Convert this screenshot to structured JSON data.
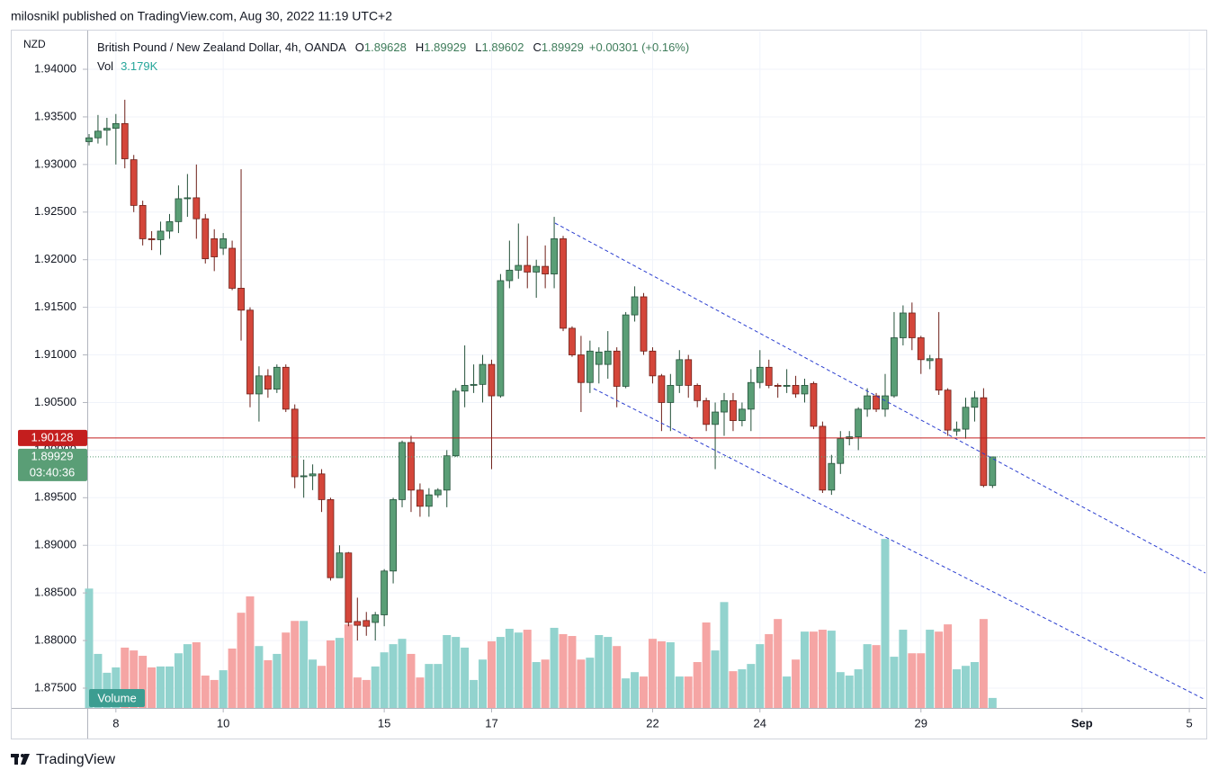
{
  "header": {
    "byline": "milosnikl published on TradingView.com, Aug 30, 2022 11:19 UTC+2",
    "brand": "TradingView"
  },
  "chart_data": {
    "type": "candlestick",
    "currency": "NZD",
    "legend": {
      "symbol": "British Pound / New Zealand Dollar, 4h, OANDA",
      "items": [
        {
          "label": "O",
          "value": "1.89628"
        },
        {
          "label": "H",
          "value": "1.89929"
        },
        {
          "label": "L",
          "value": "1.89602"
        },
        {
          "label": "C",
          "value": "1.89929"
        }
      ],
      "change": "+0.00301 (+0.16%)",
      "volume_label": "Vol",
      "volume_value": "3.179K"
    },
    "volume_badge": "Volume",
    "up_color": "#5a9e76",
    "down_color": "#d4463a",
    "volume_up_color": "#92d3ce",
    "volume_down_color": "#f5a5a4",
    "grid": true,
    "open": [
      1.9324,
      1.9328,
      1.9336,
      1.9338,
      1.9343,
      1.9305,
      1.9257,
      1.9222,
      1.9221,
      1.923,
      1.924,
      1.9264,
      1.9265,
      1.9243,
      1.9222,
      1.9212,
      1.9212,
      1.917,
      1.9147,
      1.9059,
      1.9078,
      1.9064,
      1.9087,
      1.9043,
      1.8972,
      1.8973,
      1.8975,
      1.8948,
      1.8866,
      1.8892,
      1.882,
      1.8821,
      1.8819,
      1.8827,
      1.8873,
      1.8948,
      1.9008,
      1.8958,
      1.8941,
      1.8953,
      1.8958,
      1.8994,
      1.9062,
      1.9068,
      1.9069,
      1.909,
      1.9057,
      1.9178,
      1.9189,
      1.9194,
      1.9187,
      1.9193,
      1.9185,
      1.9222,
      1.9128,
      1.91,
      1.9071,
      1.909,
      1.909,
      1.9104,
      1.9067,
      1.9142,
      1.9161,
      1.9104,
      1.9078,
      1.905,
      1.9068,
      1.9095,
      1.9068,
      1.9052,
      1.9027,
      1.904,
      1.9052,
      1.9031,
      1.9043,
      1.9071,
      1.9087,
      1.9068,
      1.9067,
      1.9068,
      1.9059,
      1.907,
      1.9025,
      1.8958,
      1.8986,
      1.9012,
      1.9014,
      1.9043,
      1.9057,
      1.9043,
      1.9057,
      1.9118,
      1.9144,
      1.9118,
      1.9094,
      1.9096,
      1.9063,
      1.902,
      1.9022,
      1.9045,
      1.9055,
      1.89628
    ],
    "high": [
      1.9332,
      1.9352,
      1.9349,
      1.9353,
      1.9368,
      1.931,
      1.9262,
      1.923,
      1.924,
      1.9248,
      1.9278,
      1.929,
      1.93,
      1.9248,
      1.9232,
      1.9228,
      1.922,
      1.9295,
      1.915,
      1.9088,
      1.9085,
      1.909,
      1.909,
      1.9048,
      1.899,
      1.8985,
      1.898,
      1.895,
      1.89,
      1.8893,
      1.8845,
      1.883,
      1.883,
      1.8875,
      1.895,
      1.901,
      1.9015,
      1.8965,
      1.896,
      1.896,
      1.9,
      1.9065,
      1.911,
      1.909,
      1.91,
      1.9095,
      1.9185,
      1.922,
      1.9238,
      1.9225,
      1.92,
      1.9215,
      1.9245,
      1.9225,
      1.913,
      1.912,
      1.9115,
      1.9108,
      1.9125,
      1.9108,
      1.9145,
      1.9172,
      1.9165,
      1.9108,
      1.908,
      1.908,
      1.9105,
      1.91,
      1.907,
      1.9055,
      1.905,
      1.906,
      1.906,
      1.905,
      1.9085,
      1.9105,
      1.9095,
      1.907,
      1.9085,
      1.9078,
      1.9075,
      1.9072,
      1.903,
      1.8995,
      1.902,
      1.902,
      1.9045,
      1.9065,
      1.906,
      1.908,
      1.9145,
      1.9152,
      1.9155,
      1.912,
      1.91,
      1.9145,
      1.9065,
      1.903,
      1.9055,
      1.9062,
      1.9065,
      1.89929
    ],
    "low": [
      1.932,
      1.9322,
      1.932,
      1.93,
      1.9296,
      1.925,
      1.9215,
      1.921,
      1.9205,
      1.9222,
      1.9228,
      1.9245,
      1.9222,
      1.9196,
      1.9188,
      1.9205,
      1.9168,
      1.9115,
      1.9045,
      1.903,
      1.9055,
      1.906,
      1.904,
      1.896,
      1.895,
      1.8958,
      1.8935,
      1.8863,
      1.8866,
      1.8815,
      1.88,
      1.8805,
      1.88,
      1.8815,
      1.886,
      1.894,
      1.8935,
      1.893,
      1.893,
      1.895,
      1.894,
      1.8993,
      1.9045,
      1.906,
      1.905,
      1.898,
      1.9055,
      1.917,
      1.918,
      1.917,
      1.916,
      1.917,
      1.917,
      1.9125,
      1.9098,
      1.904,
      1.906,
      1.907,
      1.9075,
      1.9045,
      1.9065,
      1.9135,
      1.91,
      1.907,
      1.902,
      1.902,
      1.906,
      1.9055,
      1.9045,
      1.902,
      1.898,
      1.9015,
      1.902,
      1.9025,
      1.902,
      1.9065,
      1.9065,
      1.9055,
      1.906,
      1.9055,
      1.905,
      1.9022,
      1.8955,
      1.8953,
      1.8975,
      1.9005,
      1.9,
      1.9035,
      1.904,
      1.9035,
      1.9055,
      1.911,
      1.9105,
      1.908,
      1.9085,
      1.9058,
      1.9015,
      1.9015,
      1.9012,
      1.903,
      1.8961,
      1.89602
    ],
    "close": [
      1.9328,
      1.9335,
      1.9338,
      1.9343,
      1.9306,
      1.9257,
      1.9222,
      1.9221,
      1.923,
      1.924,
      1.9264,
      1.9265,
      1.9243,
      1.9201,
      1.9203,
      1.9222,
      1.917,
      1.9147,
      1.9059,
      1.9078,
      1.9064,
      1.9087,
      1.9043,
      1.8972,
      1.8973,
      1.8975,
      1.8948,
      1.8866,
      1.8892,
      1.8819,
      1.8816,
      1.8815,
      1.8827,
      1.8873,
      1.8948,
      1.9008,
      1.8958,
      1.8941,
      1.8953,
      1.8958,
      1.8994,
      1.9062,
      1.9068,
      1.9069,
      1.909,
      1.9057,
      1.9178,
      1.9189,
      1.9194,
      1.9187,
      1.9193,
      1.9185,
      1.9222,
      1.9128,
      1.91,
      1.9071,
      1.9104,
      1.9103,
      1.9104,
      1.9067,
      1.9142,
      1.9161,
      1.9104,
      1.9078,
      1.905,
      1.9068,
      1.9095,
      1.9068,
      1.9052,
      1.9027,
      1.904,
      1.9052,
      1.9031,
      1.9043,
      1.9071,
      1.9087,
      1.9068,
      1.9067,
      1.9068,
      1.9059,
      1.9068,
      1.9025,
      1.8958,
      1.8986,
      1.9012,
      1.9014,
      1.9043,
      1.9057,
      1.9043,
      1.9057,
      1.9118,
      1.9144,
      1.9118,
      1.9095,
      1.9096,
      1.9063,
      1.9021,
      1.9022,
      1.9045,
      1.9055,
      1.89628,
      1.89929
    ],
    "volume": {
      "values": [
        38.0,
        17.2,
        11.2,
        12.9,
        19.2,
        18.3,
        16.6,
        12.9,
        13.2,
        13.2,
        17.4,
        20.3,
        20.9,
        10.3,
        8.9,
        12.0,
        18.9,
        30.3,
        35.5,
        19.7,
        15.2,
        17.2,
        24.0,
        27.7,
        27.7,
        15.4,
        13.4,
        21.5,
        22.3,
        26.6,
        9.7,
        8.9,
        13.2,
        17.7,
        20.3,
        22.0,
        17.2,
        9.7,
        14.0,
        14.0,
        23.2,
        22.6,
        19.2,
        8.9,
        15.4,
        21.2,
        22.6,
        25.2,
        24.0,
        24.9,
        14.6,
        15.4,
        25.5,
        23.5,
        22.9,
        15.4,
        16.0,
        23.2,
        22.6,
        19.7,
        9.4,
        11.4,
        10.0,
        22.0,
        21.2,
        20.9,
        10.0,
        10.0,
        14.6,
        27.2,
        18.3,
        33.7,
        11.7,
        12.3,
        14.0,
        20.3,
        23.5,
        28.3,
        10.0,
        15.4,
        24.3,
        24.3,
        24.9,
        24.6,
        11.4,
        10.3,
        12.3,
        20.3,
        20.0,
        53.8,
        16.3,
        24.9,
        17.4,
        17.4,
        24.9,
        24.3,
        26.6,
        12.3,
        13.4,
        14.6,
        28.3,
        3.179
      ],
      "ylim": [
        0,
        65
      ]
    },
    "ylim": [
      1.87292,
      1.94397
    ],
    "yticks": [
      {
        "value": 1.94,
        "label": "1.94000"
      },
      {
        "value": 1.935,
        "label": "1.93500"
      },
      {
        "value": 1.93,
        "label": "1.93000"
      },
      {
        "value": 1.925,
        "label": "1.92500"
      },
      {
        "value": 1.92,
        "label": "1.92000"
      },
      {
        "value": 1.915,
        "label": "1.91500"
      },
      {
        "value": 1.91,
        "label": "1.91000"
      },
      {
        "value": 1.905,
        "label": "1.90500"
      },
      {
        "value": 1.9,
        "label": "1.90000"
      },
      {
        "value": 1.895,
        "label": "1.89500"
      },
      {
        "value": 1.89,
        "label": "1.89000"
      },
      {
        "value": 1.885,
        "label": "1.88500"
      },
      {
        "value": 1.88,
        "label": "1.88000"
      },
      {
        "value": 1.875,
        "label": "1.87500"
      }
    ],
    "xlim": [
      -0.2,
      124.8
    ],
    "xticks": [
      {
        "value": 3,
        "label": "8"
      },
      {
        "value": 15,
        "label": "10"
      },
      {
        "value": 33,
        "label": "15"
      },
      {
        "value": 45,
        "label": "17"
      },
      {
        "value": 63,
        "label": "22"
      },
      {
        "value": 75,
        "label": "24"
      },
      {
        "value": 93,
        "label": "29"
      },
      {
        "value": 111,
        "label": "Sep"
      },
      {
        "value": 123,
        "label": "5"
      }
    ],
    "price_lines": [
      {
        "value": 1.90128,
        "label": "1.90128",
        "color": "#c41e1e"
      },
      {
        "value": 1.89929,
        "label": "1.89929",
        "countdown": "03:40:36",
        "color": "#5a9e76"
      }
    ]
  }
}
